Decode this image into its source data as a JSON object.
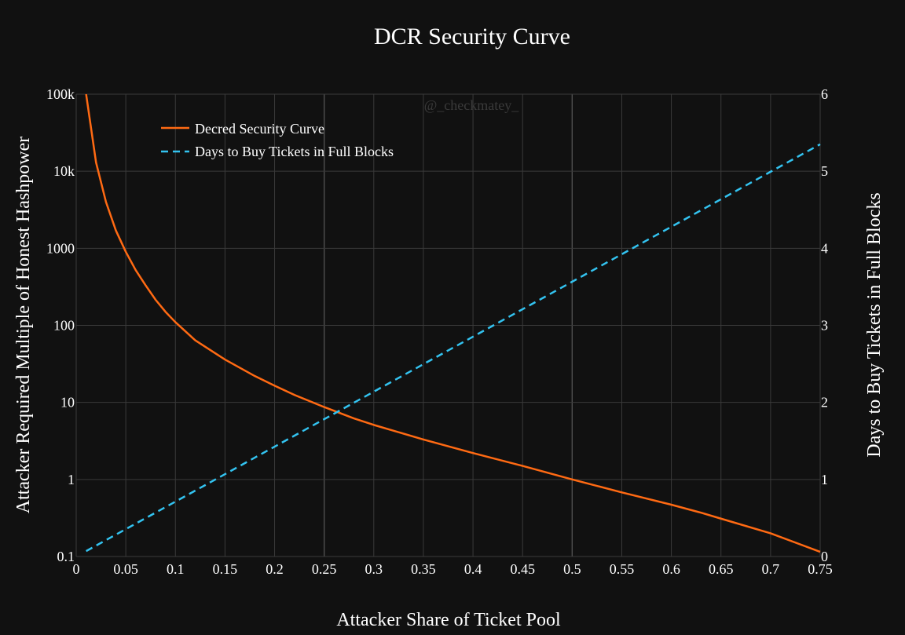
{
  "chart_data": {
    "type": "line",
    "title": "DCR Security Curve",
    "xlabel": "Attacker Share of Ticket Pool",
    "ylabel": "Attacker Required Multiple of Honest Hashpower",
    "y2label": "Days to Buy Tickets in Full Blocks",
    "watermark": "@_checkmatey_",
    "xlim": [
      0,
      0.75
    ],
    "ylim": [
      0.1,
      100000
    ],
    "yscale": "log",
    "y2lim": [
      0,
      6
    ],
    "grid": true,
    "legend_position": "top-left",
    "x_ticks": [
      "0",
      "0.05",
      "0.1",
      "0.15",
      "0.2",
      "0.25",
      "0.3",
      "0.35",
      "0.4",
      "0.45",
      "0.5",
      "0.55",
      "0.6",
      "0.65",
      "0.7",
      "0.75"
    ],
    "y_ticks": [
      "0.1",
      "1",
      "10",
      "100",
      "1000",
      "10k",
      "100k"
    ],
    "y2_ticks": [
      "0",
      "1",
      "2",
      "3",
      "4",
      "5",
      "6"
    ],
    "series": [
      {
        "name": "Decred Security Curve",
        "axis": "y",
        "color": "#ff6a13",
        "dash": "solid",
        "x": [
          0.01,
          0.02,
          0.03,
          0.04,
          0.05,
          0.06,
          0.07,
          0.08,
          0.09,
          0.1,
          0.12,
          0.15,
          0.18,
          0.2,
          0.22,
          0.25,
          0.28,
          0.3,
          0.35,
          0.4,
          0.45,
          0.5,
          0.55,
          0.6,
          0.63,
          0.65,
          0.7,
          0.75
        ],
        "y": [
          100000,
          13000,
          4000,
          1700,
          900,
          520,
          330,
          215,
          150,
          110,
          64,
          36,
          22,
          16.5,
          12.5,
          8.7,
          6.2,
          5.1,
          3.3,
          2.2,
          1.5,
          1.0,
          0.68,
          0.47,
          0.37,
          0.31,
          0.2,
          0.115
        ]
      },
      {
        "name": "Days to Buy Tickets in Full Blocks",
        "axis": "y2",
        "color": "#33c3f0",
        "dash": "dashed",
        "x": [
          0.01,
          0.75
        ],
        "y": [
          0.07,
          5.35
        ]
      }
    ]
  }
}
